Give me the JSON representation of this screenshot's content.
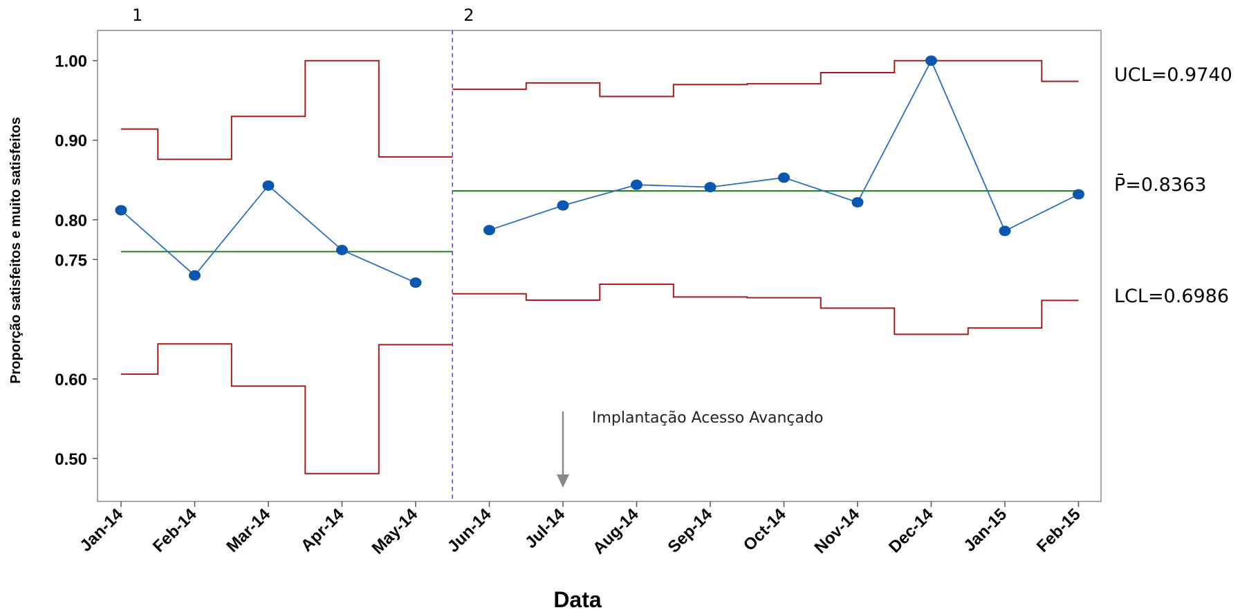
{
  "chart_data": {
    "type": "line",
    "xlabel": "Data",
    "ylabel": "Proporção satisfeitos e muito satisfeitos",
    "categories": [
      "Jan-14",
      "Feb-14",
      "Mar-14",
      "Apr-14",
      "May-14",
      "Jun-14",
      "Jul-14",
      "Aug-14",
      "Sep-14",
      "Oct-14",
      "Nov-14",
      "Dec-14",
      "Jan-15",
      "Feb-15"
    ],
    "y_ticks": [
      0.5,
      0.6,
      0.75,
      0.8,
      0.9,
      1.0
    ],
    "y_tick_labels": [
      "0.50",
      "0.60",
      "0.75",
      "0.80",
      "0.90",
      "1.00"
    ],
    "ylim": [
      0.446,
      1.038
    ],
    "grid": false,
    "series": [
      {
        "values": [
          0.812,
          0.73,
          0.843,
          0.762,
          0.721,
          0.787,
          0.818,
          0.844,
          0.841,
          0.853,
          0.822,
          1.0,
          0.786,
          0.832
        ]
      }
    ],
    "center_line": [
      0.76,
      0.76,
      0.76,
      0.76,
      0.76,
      0.8363,
      0.8363,
      0.8363,
      0.8363,
      0.8363,
      0.8363,
      0.8363,
      0.8363,
      0.8363
    ],
    "ucl": [
      0.914,
      0.876,
      0.93,
      1.0,
      0.879,
      0.964,
      0.972,
      0.955,
      0.97,
      0.971,
      0.985,
      1.0,
      1.0,
      0.974
    ],
    "lcl": [
      0.606,
      0.644,
      0.591,
      0.481,
      0.643,
      0.707,
      0.699,
      0.719,
      0.703,
      0.702,
      0.689,
      0.656,
      0.664,
      0.6986
    ],
    "phases": [
      {
        "label": "1",
        "start": 0,
        "end": 4
      },
      {
        "label": "2",
        "start": 5,
        "end": 13
      }
    ],
    "limit_labels": {
      "ucl": "UCL=0.9740",
      "center": "P̄=0.8363",
      "lcl": "LCL=0.6986"
    },
    "annotation": {
      "text": "Implantação Acesso Avançado",
      "x_index": 6
    },
    "colors": {
      "data": "#0a57b0",
      "data_line": "#2a6ebb",
      "center": "#1b8a1b",
      "limits": "#a51c1c",
      "phase_divider": "#6a3fb0",
      "frame": "#8c8c8c",
      "arrow": "#888888"
    }
  }
}
